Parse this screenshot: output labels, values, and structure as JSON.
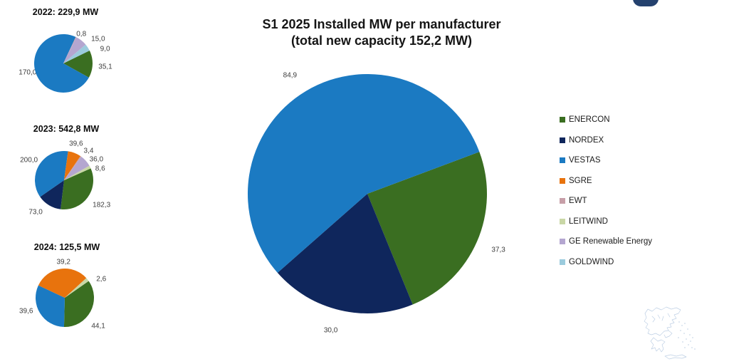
{
  "main_chart": {
    "title": "S1 2025 Installed MW per manufacturer",
    "subtitle": "(total new capacity 152,2 MW)"
  },
  "manufacturers": [
    {
      "name": "ENERCON",
      "color": "#3a6e21"
    },
    {
      "name": "NORDEX",
      "color": "#0f265c"
    },
    {
      "name": "VESTAS",
      "color": "#1b7ac2"
    },
    {
      "name": "SGRE",
      "color": "#e8730d"
    },
    {
      "name": "EWT",
      "color": "#c79fa8"
    },
    {
      "name": "LEITWIND",
      "color": "#c9d7a6"
    },
    {
      "name": "GE Renewable Energy",
      "color": "#b4a6d0"
    },
    {
      "name": "GOLDWIND",
      "color": "#9bcbdd"
    }
  ],
  "chart_data": [
    {
      "id": "pie-2022",
      "type": "pie",
      "title": "2022: 229,9 MW",
      "total_mw": 229.9,
      "unit": "MW",
      "start_angle": 64,
      "slices": [
        {
          "name": "ENERCON",
          "value": 35.1,
          "label": "35,1"
        },
        {
          "name": "VESTAS",
          "value": 170.0,
          "label": "170,0"
        },
        {
          "name": "EWT",
          "value": 0.8,
          "label": "0,8"
        },
        {
          "name": "GE Renewable Energy",
          "value": 15.0,
          "label": "15,0"
        },
        {
          "name": "GOLDWIND",
          "value": 9.0,
          "label": "9,0"
        }
      ]
    },
    {
      "id": "pie-2023",
      "type": "pie",
      "title": "2023: 542,8 MW",
      "total_mw": 542.8,
      "unit": "MW",
      "start_angle": 66,
      "slices": [
        {
          "name": "ENERCON",
          "value": 182.3,
          "label": "182,3"
        },
        {
          "name": "NORDEX",
          "value": 73.0,
          "label": "73,0"
        },
        {
          "name": "VESTAS",
          "value": 200.0,
          "label": "200,0"
        },
        {
          "name": "SGRE",
          "value": 39.6,
          "label": "39,6"
        },
        {
          "name": "EWT",
          "value": 3.4,
          "label": "3,4"
        },
        {
          "name": "GE Renewable Energy",
          "value": 36.0,
          "label": "36,0"
        },
        {
          "name": "LEITWIND",
          "value": 8.6,
          "label": "8,6"
        }
      ]
    },
    {
      "id": "pie-2024",
      "type": "pie",
      "title": "2024: 125,5 MW",
      "total_mw": 125.5,
      "unit": "MW",
      "start_angle": 55,
      "slices": [
        {
          "name": "ENERCON",
          "value": 44.1,
          "label": "44,1"
        },
        {
          "name": "VESTAS",
          "value": 39.6,
          "label": "39,6"
        },
        {
          "name": "SGRE",
          "value": 39.2,
          "label": "39,2"
        },
        {
          "name": "LEITWIND",
          "value": 2.6,
          "label": "2,6"
        }
      ]
    },
    {
      "id": "pie-2025",
      "type": "pie",
      "title": "S1 2025 Installed MW per manufacturer",
      "subtitle": "(total new capacity 152,2 MW)",
      "total_mw": 152.2,
      "unit": "MW",
      "start_angle": 69.5,
      "slices": [
        {
          "name": "ENERCON",
          "value": 37.3,
          "label": "37,3"
        },
        {
          "name": "NORDEX",
          "value": 30.0,
          "label": "30,0"
        },
        {
          "name": "VESTAS",
          "value": 84.9,
          "label": "84,9"
        }
      ]
    }
  ],
  "legend": {
    "position": "right",
    "items": [
      "ENERCON",
      "NORDEX",
      "VESTAS",
      "SGRE",
      "EWT",
      "LEITWIND",
      "GE Renewable Energy",
      "GOLDWIND"
    ]
  },
  "decorations": {
    "logo_color": "#24416e",
    "map_color": "#a9c0dc"
  }
}
